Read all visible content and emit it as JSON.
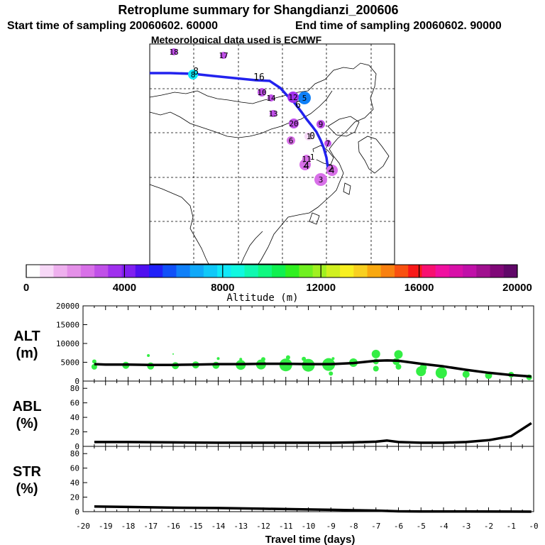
{
  "title": "Retroplume summary for Shangdianzi_200606",
  "subtitle_start": "Start time of sampling 20060602. 60000",
  "subtitle_end": "End time of sampling 20060602. 90000",
  "subtitle_met": "Meteorological data used is ECMWF",
  "colors": {
    "path": "#2222ee",
    "alt_points": "#33ee44",
    "line": "#000000"
  },
  "chart_data": [
    {
      "type": "map-trajectory",
      "name": "retroplume-map",
      "note": "Map of East Asia with backward plume trajectory and numbered cluster centroids (days back) colored by altitude",
      "clusters": [
        {
          "day": "1",
          "alt": 500
        },
        {
          "day": "1",
          "alt": 800
        },
        {
          "day": "2",
          "alt": 2500
        },
        {
          "day": "3",
          "alt": 2600
        },
        {
          "day": "4",
          "alt": 2600
        },
        {
          "day": "5",
          "alt": 6500
        },
        {
          "day": "6",
          "alt": 2500
        },
        {
          "day": "7",
          "alt": 2900
        },
        {
          "day": "8",
          "alt": 7800
        },
        {
          "day": "9",
          "alt": 3000
        },
        {
          "day": "10",
          "alt": 3000
        },
        {
          "day": "11",
          "alt": 2700
        },
        {
          "day": "12",
          "alt": 3500
        },
        {
          "day": "13",
          "alt": 3000
        },
        {
          "day": "14",
          "alt": 3000
        },
        {
          "day": "17",
          "alt": 3000
        },
        {
          "day": "18",
          "alt": 3000
        },
        {
          "day": "20",
          "alt": 3000
        }
      ],
      "path_labels": [
        "8",
        "16",
        "6",
        "0",
        "2",
        "4"
      ]
    },
    {
      "type": "colorbar",
      "name": "altitude-colorbar",
      "label": "Altitude (m)",
      "range": [
        0,
        20000
      ],
      "ticks": [
        "0",
        "4000",
        "8000",
        "12000",
        "16000",
        "20000"
      ],
      "colors": [
        "#ffffff",
        "#f7d8f7",
        "#eeb0ee",
        "#e490e8",
        "#d870e8",
        "#c050e8",
        "#a030ee",
        "#8020f0",
        "#5010f0",
        "#2020f8",
        "#1050f8",
        "#1080f8",
        "#10a8f8",
        "#10c8f8",
        "#10e8f8",
        "#10f8e0",
        "#10f8b0",
        "#10f880",
        "#10f050",
        "#30f020",
        "#70f020",
        "#a0f020",
        "#d0f020",
        "#f8f020",
        "#f8d020",
        "#f8a810",
        "#f88010",
        "#f85010",
        "#f81818",
        "#f81070",
        "#f010a0",
        "#d810a8",
        "#c010a8",
        "#a0108f",
        "#800878",
        "#600868"
      ]
    },
    {
      "type": "line",
      "name": "ALT",
      "ylabel_top": "ALT",
      "ylabel_bottom": "(m)",
      "xlim": [
        -20,
        0
      ],
      "ylim": [
        0,
        20000
      ],
      "yticks": [
        "0",
        "5000",
        "10000",
        "15000",
        "20000"
      ],
      "x": [
        -19.5,
        -19,
        -18,
        -17,
        -16,
        -15,
        -14,
        -13,
        -12,
        -11,
        -10,
        -9,
        -8,
        -7,
        -6.5,
        -6,
        -5,
        -4,
        -3,
        -2,
        -1,
        -0.5,
        -0.1
      ],
      "values": [
        4500,
        4400,
        4400,
        4300,
        4300,
        4400,
        4500,
        4500,
        4600,
        4600,
        4500,
        4500,
        4800,
        5400,
        5500,
        5400,
        4600,
        3900,
        3000,
        2200,
        1600,
        1400,
        1200
      ],
      "scatter": [
        {
          "x": -19.5,
          "y": 5200,
          "r": 3
        },
        {
          "x": -19.5,
          "y": 3800,
          "r": 4
        },
        {
          "x": -18.1,
          "y": 4200,
          "r": 5
        },
        {
          "x": -17.1,
          "y": 6800,
          "r": 2
        },
        {
          "x": -17.0,
          "y": 4000,
          "r": 5
        },
        {
          "x": -16.0,
          "y": 7200,
          "r": 1
        },
        {
          "x": -15.9,
          "y": 4100,
          "r": 5
        },
        {
          "x": -15.0,
          "y": 4300,
          "r": 5
        },
        {
          "x": -14.1,
          "y": 4200,
          "r": 5
        },
        {
          "x": -14.0,
          "y": 6000,
          "r": 2
        },
        {
          "x": -13.0,
          "y": 4300,
          "r": 7
        },
        {
          "x": -13.0,
          "y": 5800,
          "r": 2
        },
        {
          "x": -12.1,
          "y": 4400,
          "r": 7
        },
        {
          "x": -12.0,
          "y": 5800,
          "r": 3
        },
        {
          "x": -11.0,
          "y": 4300,
          "r": 9
        },
        {
          "x": -10.9,
          "y": 6300,
          "r": 3
        },
        {
          "x": -10.0,
          "y": 4200,
          "r": 9
        },
        {
          "x": -10.2,
          "y": 5900,
          "r": 3
        },
        {
          "x": -9.1,
          "y": 4400,
          "r": 9
        },
        {
          "x": -9.0,
          "y": 2000,
          "r": 3
        },
        {
          "x": -8.9,
          "y": 6000,
          "r": 2
        },
        {
          "x": -8.0,
          "y": 4900,
          "r": 6
        },
        {
          "x": -7.0,
          "y": 7200,
          "r": 6
        },
        {
          "x": -7.0,
          "y": 5200,
          "r": 4
        },
        {
          "x": -7.0,
          "y": 3300,
          "r": 4
        },
        {
          "x": -6.0,
          "y": 7100,
          "r": 6
        },
        {
          "x": -6.1,
          "y": 5200,
          "r": 5
        },
        {
          "x": -6.0,
          "y": 3800,
          "r": 4
        },
        {
          "x": -5.0,
          "y": 2600,
          "r": 7
        },
        {
          "x": -4.9,
          "y": 3600,
          "r": 5
        },
        {
          "x": -4.1,
          "y": 2200,
          "r": 8
        },
        {
          "x": -3.0,
          "y": 1800,
          "r": 5
        },
        {
          "x": -2.0,
          "y": 1500,
          "r": 5
        },
        {
          "x": -1.0,
          "y": 1700,
          "r": 4
        },
        {
          "x": -0.2,
          "y": 1000,
          "r": 4
        }
      ]
    },
    {
      "type": "line",
      "name": "ABL",
      "ylabel_top": "ABL",
      "ylabel_bottom": "(%)",
      "xlim": [
        -20,
        0
      ],
      "ylim": [
        0,
        90
      ],
      "yticks": [
        "0",
        "20",
        "40",
        "60",
        "80"
      ],
      "x": [
        -19.5,
        -18,
        -16,
        -14,
        -12,
        -10,
        -9,
        -8,
        -7,
        -6.5,
        -6,
        -5,
        -4,
        -3,
        -2,
        -1,
        -0.1
      ],
      "values": [
        6,
        6,
        5.5,
        5,
        5,
        5,
        5,
        5.5,
        6.5,
        8,
        6,
        5,
        5,
        6,
        8.5,
        14,
        32
      ]
    },
    {
      "type": "line",
      "name": "STR",
      "ylabel_top": "STR",
      "ylabel_bottom": "(%)",
      "xlim": [
        -20,
        0
      ],
      "ylim": [
        0,
        90
      ],
      "yticks": [
        "0",
        "20",
        "40",
        "60",
        "80"
      ],
      "xlabel": "Travel time (days)",
      "xticks": [
        "-20",
        "-19",
        "-18",
        "-17",
        "-16",
        "-15",
        "-14",
        "-13",
        "-12",
        "-11",
        "-10",
        "-9",
        "-8",
        "-7",
        "-6",
        "-5",
        "-4",
        "-3",
        "-2",
        "-1",
        "-0"
      ],
      "x": [
        -19.5,
        -18,
        -16,
        -14,
        -12,
        -10,
        -9,
        -8,
        -7,
        -6,
        -5,
        -3,
        -1,
        -0.1
      ],
      "values": [
        7,
        6.5,
        5.5,
        5,
        4,
        3,
        2.5,
        2,
        1.5,
        0.5,
        0.3,
        0.2,
        0.1,
        0
      ]
    }
  ]
}
